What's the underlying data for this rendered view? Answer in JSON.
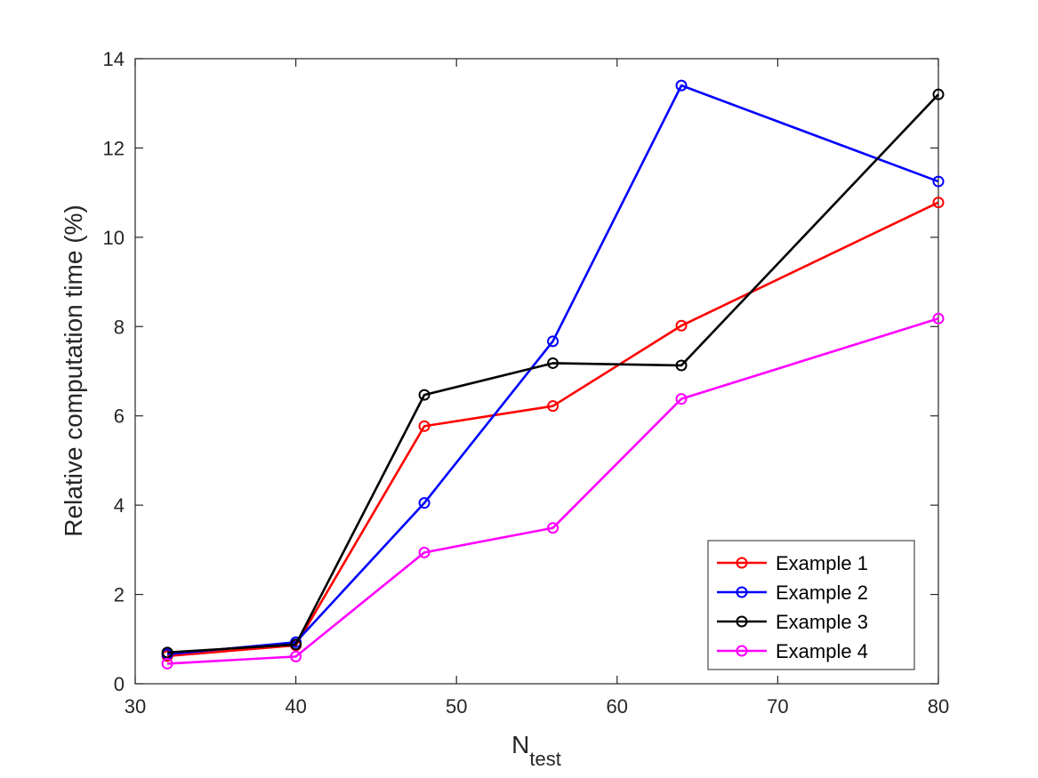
{
  "chart_data": {
    "type": "line",
    "xlabel": "N",
    "xlabel_sub": "test",
    "ylabel": "Relative computation time (%)",
    "x": [
      32,
      40,
      48,
      56,
      64,
      80
    ],
    "xlim": [
      30,
      80
    ],
    "ylim": [
      0,
      14
    ],
    "xticks": [
      "30",
      "40",
      "50",
      "60",
      "70",
      "80"
    ],
    "yticks": [
      "0",
      "2",
      "4",
      "6",
      "8",
      "10",
      "12",
      "14"
    ],
    "grid": false,
    "legend_position": "bottom-right",
    "marker": "circle",
    "series": [
      {
        "name": "Example 1",
        "color": "#ff0000",
        "values": [
          0.62,
          0.86,
          5.77,
          6.22,
          8.02,
          10.78
        ]
      },
      {
        "name": "Example 2",
        "color": "#0000ff",
        "values": [
          0.66,
          0.93,
          4.05,
          7.67,
          13.4,
          11.25
        ]
      },
      {
        "name": "Example 3",
        "color": "#000000",
        "values": [
          0.7,
          0.88,
          6.47,
          7.18,
          7.13,
          13.2
        ]
      },
      {
        "name": "Example 4",
        "color": "#ff00ff",
        "values": [
          0.45,
          0.61,
          2.94,
          3.49,
          6.38,
          8.18
        ]
      }
    ]
  }
}
